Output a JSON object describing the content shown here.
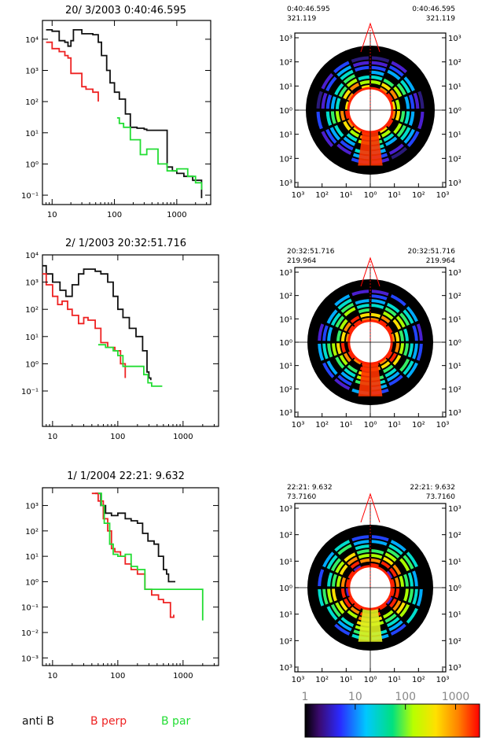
{
  "colors": {
    "anti": "#111111",
    "perp": "#ee2222",
    "par": "#22dd33",
    "frame": "#000000"
  },
  "legend": [
    {
      "label": "anti B",
      "color": "#111111"
    },
    {
      "label": "B perp",
      "color": "#ee2222"
    },
    {
      "label": "B par",
      "color": "#22dd33"
    }
  ],
  "colorbar": {
    "ticks": [
      "1",
      "10",
      "100",
      "1000"
    ],
    "range": [
      1,
      3000
    ],
    "scale": "log"
  },
  "chart_data": [
    {
      "type": "line",
      "title": "20/ 3/2003   0:40:46.595",
      "x_ticks": [
        "10",
        "100",
        "1000"
      ],
      "xlim": [
        7,
        3500
      ],
      "xscale": "log",
      "y_ticks": [
        "10⁴",
        "10³",
        "10²",
        "10¹",
        "10⁰",
        "10⁻¹"
      ],
      "ylim": [
        0.05,
        40000
      ],
      "yscale": "log",
      "series": [
        {
          "name": "anti B",
          "values": [
            [
              8,
              20000
            ],
            [
              10,
              18000
            ],
            [
              13,
              9000
            ],
            [
              16,
              8000
            ],
            [
              18,
              6000
            ],
            [
              20,
              9000
            ],
            [
              22,
              20000
            ],
            [
              30,
              15000
            ],
            [
              45,
              14000
            ],
            [
              55,
              8000
            ],
            [
              62,
              3000
            ],
            [
              75,
              1000
            ],
            [
              85,
              400
            ],
            [
              100,
              200
            ],
            [
              120,
              120
            ],
            [
              150,
              40
            ],
            [
              180,
              15
            ],
            [
              230,
              14
            ],
            [
              300,
              13
            ],
            [
              330,
              12
            ],
            [
              700,
              0.8
            ],
            [
              850,
              0.6
            ],
            [
              1000,
              0.5
            ],
            [
              1300,
              0.4
            ],
            [
              1800,
              0.3
            ],
            [
              2500,
              0.08
            ]
          ]
        },
        {
          "name": "B perp",
          "values": [
            [
              8,
              8000
            ],
            [
              10,
              5000
            ],
            [
              13,
              4000
            ],
            [
              16,
              3000
            ],
            [
              18,
              2500
            ],
            [
              20,
              800
            ],
            [
              25,
              800
            ],
            [
              30,
              300
            ],
            [
              35,
              250
            ],
            [
              45,
              200
            ],
            [
              55,
              100
            ]
          ]
        },
        {
          "name": "B par",
          "values": [
            [
              110,
              30
            ],
            [
              120,
              20
            ],
            [
              140,
              15
            ],
            [
              180,
              6
            ],
            [
              260,
              2
            ],
            [
              330,
              3
            ],
            [
              500,
              1
            ],
            [
              700,
              0.6
            ],
            [
              1000,
              0.7
            ],
            [
              1500,
              0.4
            ],
            [
              2000,
              0.25
            ],
            [
              2500,
              0.15
            ]
          ]
        }
      ]
    },
    {
      "type": "line",
      "title": "2/ 1/2003 20:32:51.716",
      "x_ticks": [
        "10",
        "100",
        "1000"
      ],
      "xlim": [
        7,
        3500
      ],
      "xscale": "log",
      "y_ticks": [
        "10⁴",
        "10³",
        "10²",
        "10¹",
        "10⁰",
        "10⁻¹"
      ],
      "ylim": [
        0.05,
        100000
      ],
      "yscale": "log",
      "series": [
        {
          "name": "anti B",
          "values": [
            [
              7,
              40000
            ],
            [
              8,
              20000
            ],
            [
              10,
              10000
            ],
            [
              13,
              5000
            ],
            [
              16,
              3000
            ],
            [
              18,
              3000
            ],
            [
              20,
              8000
            ],
            [
              25,
              20000
            ],
            [
              30,
              30000
            ],
            [
              45,
              25000
            ],
            [
              55,
              20000
            ],
            [
              70,
              10000
            ],
            [
              85,
              3000
            ],
            [
              100,
              1000
            ],
            [
              120,
              500
            ],
            [
              150,
              200
            ],
            [
              190,
              100
            ],
            [
              240,
              30
            ],
            [
              280,
              5
            ],
            [
              300,
              3
            ],
            [
              320,
              2.5
            ]
          ]
        },
        {
          "name": "B perp",
          "values": [
            [
              7,
              20000
            ],
            [
              8,
              8000
            ],
            [
              10,
              3000
            ],
            [
              12,
              1500
            ],
            [
              14,
              2000
            ],
            [
              17,
              1000
            ],
            [
              20,
              600
            ],
            [
              25,
              300
            ],
            [
              30,
              500
            ],
            [
              35,
              400
            ],
            [
              45,
              200
            ],
            [
              55,
              60
            ],
            [
              70,
              40
            ],
            [
              90,
              30
            ],
            [
              110,
              10
            ],
            [
              130,
              3
            ]
          ]
        },
        {
          "name": "B par",
          "values": [
            [
              50,
              50
            ],
            [
              65,
              40
            ],
            [
              85,
              30
            ],
            [
              100,
              20
            ],
            [
              120,
              8
            ],
            [
              250,
              4
            ],
            [
              290,
              2
            ],
            [
              330,
              1.5
            ],
            [
              480,
              1.5
            ]
          ]
        }
      ]
    },
    {
      "type": "line",
      "title": "1/ 1/2004 22:21: 9.632",
      "x_ticks": [
        "10",
        "100",
        "1000"
      ],
      "xlim": [
        7,
        3500
      ],
      "xscale": "log",
      "y_ticks": [
        "10³",
        "10²",
        "10¹",
        "10⁰",
        "10⁻¹",
        "10⁻²",
        "10⁻³"
      ],
      "ylim": [
        0.0005,
        5000
      ],
      "yscale": "log",
      "series": [
        {
          "name": "anti B",
          "values": [
            [
              45,
              3000
            ],
            [
              55,
              1000
            ],
            [
              65,
              500
            ],
            [
              80,
              400
            ],
            [
              100,
              500
            ],
            [
              130,
              300
            ],
            [
              160,
              250
            ],
            [
              200,
              200
            ],
            [
              240,
              80
            ],
            [
              290,
              40
            ],
            [
              360,
              30
            ],
            [
              420,
              10
            ],
            [
              500,
              3
            ],
            [
              560,
              2
            ],
            [
              600,
              1
            ],
            [
              760,
              1
            ]
          ]
        },
        {
          "name": "B perp",
          "values": [
            [
              40,
              3000
            ],
            [
              50,
              1500
            ],
            [
              60,
              300
            ],
            [
              70,
              100
            ],
            [
              80,
              20
            ],
            [
              90,
              15
            ],
            [
              110,
              10
            ],
            [
              130,
              5
            ],
            [
              160,
              3
            ],
            [
              200,
              2
            ],
            [
              260,
              0.5
            ],
            [
              330,
              0.3
            ],
            [
              420,
              0.2
            ],
            [
              500,
              0.15
            ],
            [
              640,
              0.04
            ],
            [
              720,
              0.05
            ]
          ]
        },
        {
          "name": "B par",
          "values": [
            [
              50,
              3000
            ],
            [
              56,
              1000
            ],
            [
              62,
              200
            ],
            [
              75,
              30
            ],
            [
              85,
              12
            ],
            [
              100,
              10
            ],
            [
              130,
              12
            ],
            [
              160,
              4
            ],
            [
              200,
              3
            ],
            [
              260,
              0.5
            ],
            [
              2000,
              0.03
            ]
          ]
        }
      ]
    },
    {
      "type": "heatmap",
      "label_left": [
        "0:40:46.595",
        "321.119"
      ],
      "label_right": [
        "0:40:46.595",
        "321.119"
      ],
      "y_ticks": [
        "10³",
        "10²",
        "10¹",
        "10⁰",
        "10¹",
        "10²",
        "10³"
      ],
      "x_ticks": [
        "10³",
        "10²",
        "10¹",
        "10⁰",
        "10¹",
        "10²",
        "10³"
      ]
    },
    {
      "type": "heatmap",
      "label_left": [
        "20:32:51.716",
        "219.964"
      ],
      "label_right": [
        "20:32:51.716",
        "219.964"
      ],
      "y_ticks": [
        "10³",
        "10²",
        "10¹",
        "10⁰",
        "10¹",
        "10²",
        "10³"
      ],
      "x_ticks": [
        "10³",
        "10²",
        "10¹",
        "10⁰",
        "10¹",
        "10²",
        "10³"
      ]
    },
    {
      "type": "heatmap",
      "label_left": [
        "22:21: 9.632",
        "73.7160"
      ],
      "label_right": [
        "22:21: 9.632",
        "73.7160"
      ],
      "y_ticks": [
        "10³",
        "10²",
        "10¹",
        "10⁰",
        "10¹",
        "10²",
        "10³"
      ],
      "x_ticks": [
        "10³",
        "10²",
        "10¹",
        "10⁰",
        "10¹",
        "10²",
        "10³"
      ]
    }
  ]
}
